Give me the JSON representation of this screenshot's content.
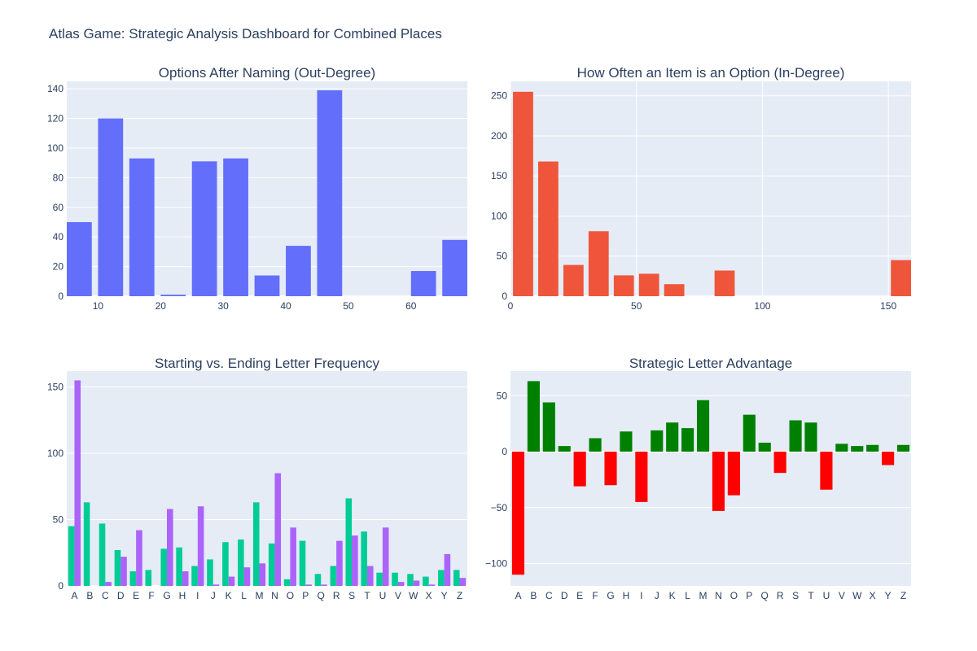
{
  "title": "Atlas Game: Strategic Analysis Dashboard for Combined Places",
  "colors": {
    "plot_bg": "#E5ECF6",
    "grid": "#FFFFFF",
    "tick_text": "#2a3f5f",
    "out_degree": "#636EFA",
    "in_degree": "#EF553B",
    "start_freq": "#00CC96",
    "end_freq": "#AB63FA",
    "positive": "#008000",
    "negative": "#FF0000"
  },
  "chart_data": [
    {
      "type": "bar",
      "title": "Options After Naming (Out-Degree)",
      "xlabel": "",
      "ylabel": "",
      "x": [
        7,
        12,
        17,
        22,
        27,
        32,
        37,
        42,
        47,
        52,
        57,
        62,
        67
      ],
      "values": [
        50,
        120,
        93,
        1,
        91,
        93,
        14,
        34,
        139,
        0,
        0,
        17,
        38
      ],
      "xlim": [
        5,
        69
      ],
      "ylim": [
        0,
        145
      ],
      "xticks": [
        10,
        20,
        30,
        40,
        50,
        60
      ],
      "yticks": [
        0,
        20,
        40,
        60,
        80,
        100,
        120,
        140
      ],
      "grid": true
    },
    {
      "type": "bar",
      "title": "How Often an Item is an Option (In-Degree)",
      "xlabel": "",
      "ylabel": "",
      "x": [
        5,
        15,
        25,
        35,
        45,
        55,
        65,
        75,
        85,
        95,
        105,
        115,
        125,
        135,
        145,
        155
      ],
      "values": [
        255,
        168,
        39,
        81,
        26,
        28,
        15,
        0,
        32,
        0,
        0,
        0,
        0,
        0,
        0,
        45
      ],
      "xlim": [
        0,
        159
      ],
      "ylim": [
        0,
        268
      ],
      "xticks": [
        0,
        50,
        100,
        150
      ],
      "yticks": [
        0,
        50,
        100,
        150,
        200,
        250
      ],
      "grid": true
    },
    {
      "type": "bar",
      "title": "Starting vs. Ending Letter Frequency",
      "xlabel": "",
      "ylabel": "",
      "categories": [
        "A",
        "B",
        "C",
        "D",
        "E",
        "F",
        "G",
        "H",
        "I",
        "J",
        "K",
        "L",
        "M",
        "N",
        "O",
        "P",
        "Q",
        "R",
        "S",
        "T",
        "U",
        "V",
        "W",
        "X",
        "Y",
        "Z"
      ],
      "series": [
        {
          "values": [
            45,
            63,
            47,
            27,
            11,
            12,
            28,
            29,
            15,
            20,
            33,
            35,
            63,
            32,
            5,
            34,
            9,
            15,
            66,
            41,
            10,
            10,
            9,
            7,
            12,
            12
          ]
        },
        {
          "values": [
            155,
            0,
            3,
            22,
            42,
            0,
            58,
            11,
            60,
            1,
            7,
            14,
            17,
            85,
            44,
            1,
            1,
            34,
            38,
            15,
            44,
            3,
            4,
            1,
            24,
            6
          ]
        }
      ],
      "ylim": [
        0,
        162
      ],
      "yticks": [
        0,
        50,
        100,
        150
      ],
      "grid": true
    },
    {
      "type": "bar",
      "title": "Strategic Letter Advantage",
      "xlabel": "",
      "ylabel": "",
      "categories": [
        "A",
        "B",
        "C",
        "D",
        "E",
        "F",
        "G",
        "H",
        "I",
        "J",
        "K",
        "L",
        "M",
        "N",
        "O",
        "P",
        "Q",
        "R",
        "S",
        "T",
        "U",
        "V",
        "W",
        "X",
        "Y",
        "Z"
      ],
      "values": [
        -110,
        63,
        44,
        5,
        -31,
        12,
        -30,
        18,
        -45,
        19,
        26,
        21,
        46,
        -53,
        -39,
        33,
        8,
        -19,
        28,
        26,
        -34,
        7,
        5,
        6,
        -12,
        6
      ],
      "ylim": [
        -120,
        72
      ],
      "yticks": [
        -100,
        -50,
        0,
        50
      ],
      "grid": true
    }
  ]
}
